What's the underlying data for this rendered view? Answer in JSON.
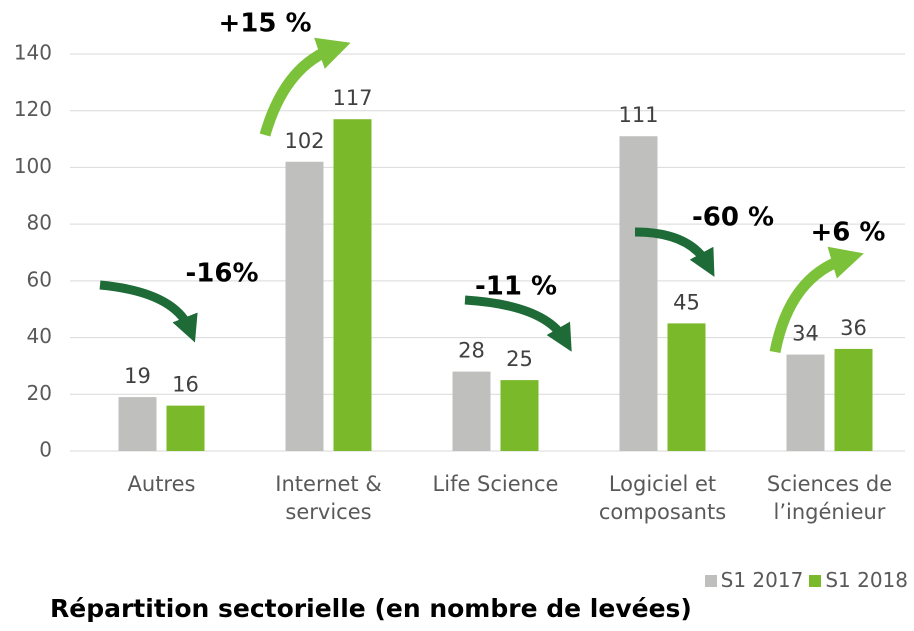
{
  "chart_data": {
    "type": "bar",
    "title": "Répartition sectorielle (en nombre de levées)",
    "categories": [
      "Autres",
      "Internet & services",
      "Life Science",
      "Logiciel et composants",
      "Sciences de l’ingénieur"
    ],
    "series": [
      {
        "name": "S1 2017",
        "color": "#bfbfbd",
        "values": [
          19,
          102,
          28,
          111,
          34
        ]
      },
      {
        "name": "S1 2018",
        "color": "#7ab929",
        "values": [
          16,
          117,
          25,
          45,
          36
        ]
      }
    ],
    "annotations": [
      "-16%",
      "+15 %",
      "-11 %",
      "-60 %",
      "+6 %"
    ],
    "ylim": [
      0,
      140
    ],
    "yticks": [
      0,
      20,
      40,
      60,
      80,
      100,
      120,
      140
    ],
    "grid": true
  }
}
